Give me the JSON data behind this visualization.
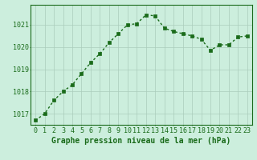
{
  "x": [
    0,
    1,
    2,
    3,
    4,
    5,
    6,
    7,
    8,
    9,
    10,
    11,
    12,
    13,
    14,
    15,
    16,
    17,
    18,
    19,
    20,
    21,
    22,
    23
  ],
  "y": [
    1016.7,
    1017.0,
    1017.6,
    1018.0,
    1018.3,
    1018.8,
    1019.3,
    1019.7,
    1020.2,
    1020.6,
    1021.0,
    1021.05,
    1021.45,
    1021.4,
    1020.85,
    1020.7,
    1020.6,
    1020.5,
    1020.35,
    1019.85,
    1020.1,
    1020.1,
    1020.45,
    1020.5
  ],
  "ylim": [
    1016.5,
    1021.9
  ],
  "yticks": [
    1017,
    1018,
    1019,
    1020,
    1021
  ],
  "xticks": [
    0,
    1,
    2,
    3,
    4,
    5,
    6,
    7,
    8,
    9,
    10,
    11,
    12,
    13,
    14,
    15,
    16,
    17,
    18,
    19,
    20,
    21,
    22,
    23
  ],
  "line_color": "#1a6b1a",
  "marker_color": "#1a6b1a",
  "bg_color": "#cceedd",
  "grid_color": "#aaccbb",
  "border_color": "#1a6b1a",
  "xlabel": "Graphe pression niveau de la mer (hPa)",
  "xlabel_color": "#1a6b1a",
  "xlabel_fontsize": 7,
  "tick_fontsize": 6,
  "tick_color": "#1a6b1a",
  "line_width": 1.0,
  "marker_size": 2.5
}
